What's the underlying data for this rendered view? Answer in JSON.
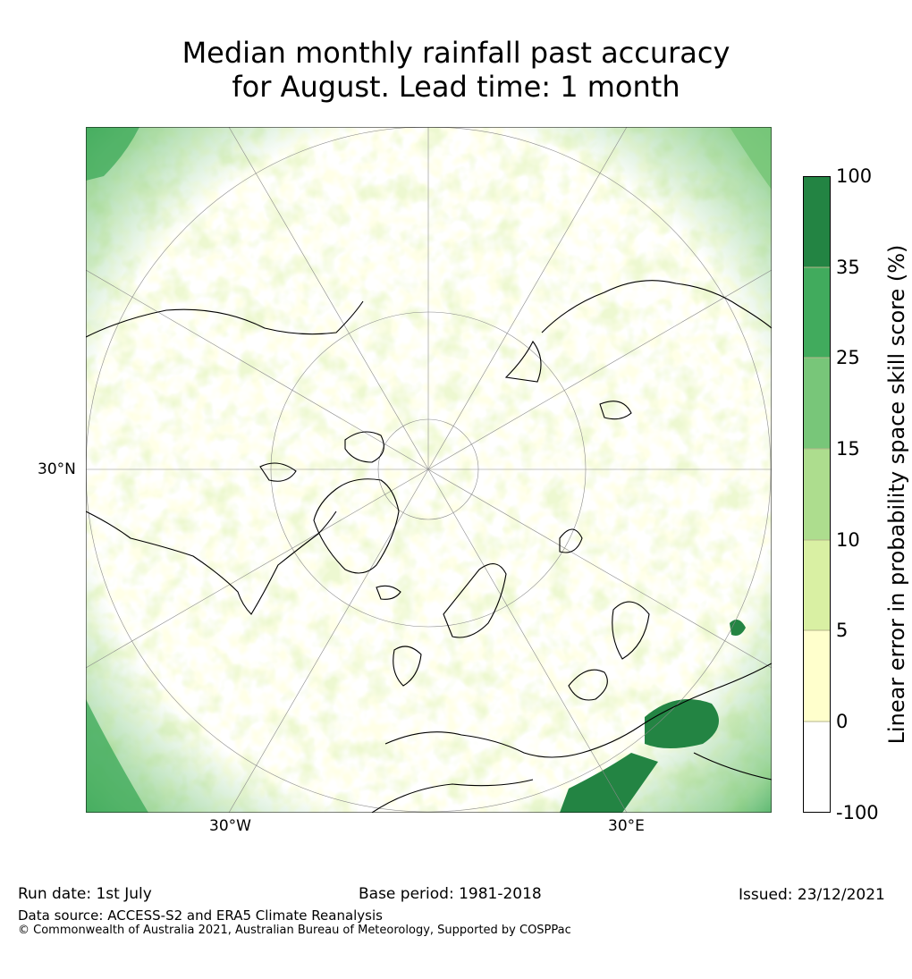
{
  "title": {
    "line1": "Median monthly rainfall past accuracy",
    "line2": "for August. Lead time: 1 month"
  },
  "map": {
    "projection": "north-polar-stereographic",
    "gridline_labels": {
      "left": "30°N",
      "bottom_left": "30°W",
      "bottom_right": "30°E"
    }
  },
  "colorbar": {
    "title": "Linear error in probability space skill score (%)",
    "ticks": [
      "100",
      "35",
      "25",
      "15",
      "10",
      "5",
      "0",
      "-100"
    ],
    "bins": [
      {
        "range": "-100 to 0",
        "color": "#ffffff"
      },
      {
        "range": "0 to 5",
        "color": "#ffffcc"
      },
      {
        "range": "5 to 10",
        "color": "#d9f0a3"
      },
      {
        "range": "10 to 15",
        "color": "#addd8e"
      },
      {
        "range": "15 to 25",
        "color": "#78c679"
      },
      {
        "range": "25 to 35",
        "color": "#41ab5d"
      },
      {
        "range": "35 to 100",
        "color": "#238443"
      }
    ]
  },
  "footer": {
    "run_date": "Run date: 1st July",
    "base_period": "Base period: 1981-2018",
    "issued": "Issued: 23/12/2021",
    "data_source": "Data source: ACCESS-S2 and ERA5 Climate Reanalysis",
    "copyright": "© Commonwealth of Australia 2021, Australian Bureau of Meteorology, Supported by COSPPac"
  }
}
